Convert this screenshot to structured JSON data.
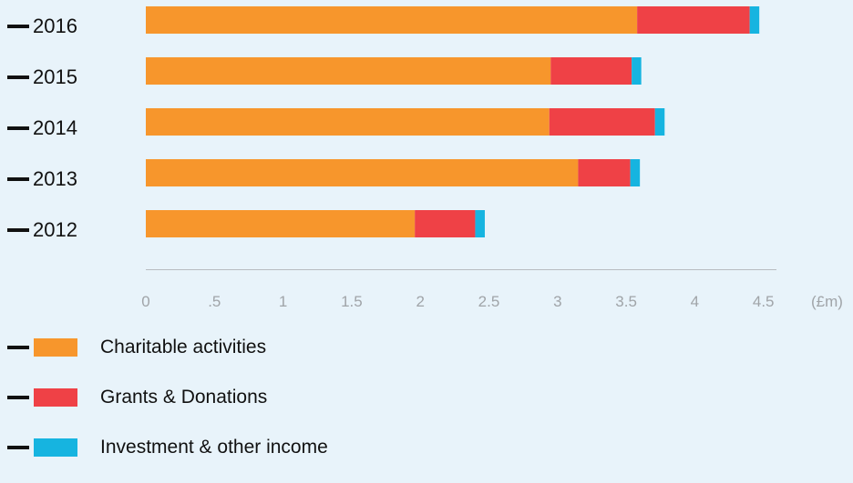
{
  "chart_data": {
    "type": "bar",
    "orientation": "horizontal",
    "stacked": true,
    "categories": [
      "2016",
      "2015",
      "2014",
      "2013",
      "2012"
    ],
    "series": [
      {
        "name": "Charitable activities",
        "values": [
          3.58,
          2.95,
          2.94,
          3.15,
          1.96
        ],
        "color": "#f7962c"
      },
      {
        "name": "Grants & Donations",
        "values": [
          0.82,
          0.59,
          0.77,
          0.38,
          0.44
        ],
        "color": "#ef4146"
      },
      {
        "name": "Investment & other income",
        "values": [
          0.07,
          0.07,
          0.07,
          0.07,
          0.07
        ],
        "color": "#16b4e0"
      }
    ],
    "xticks": [
      "0",
      ".5",
      "1",
      "1.5",
      "2",
      "2.5",
      "3",
      "3.5",
      "4",
      "4.5"
    ],
    "xtick_values": [
      0,
      0.5,
      1,
      1.5,
      2,
      2.5,
      3,
      3.5,
      4,
      4.5
    ],
    "xlim": [
      0,
      4.5
    ],
    "unit_label": "(£m)",
    "title": "",
    "xlabel": "",
    "ylabel": "",
    "grid": false,
    "legend_position": "bottom-left"
  },
  "colors": {
    "background": "#e8f3fa",
    "axis": "#b8bcc0",
    "tick_text": "#a0a4a8",
    "label_text": "#111111"
  }
}
